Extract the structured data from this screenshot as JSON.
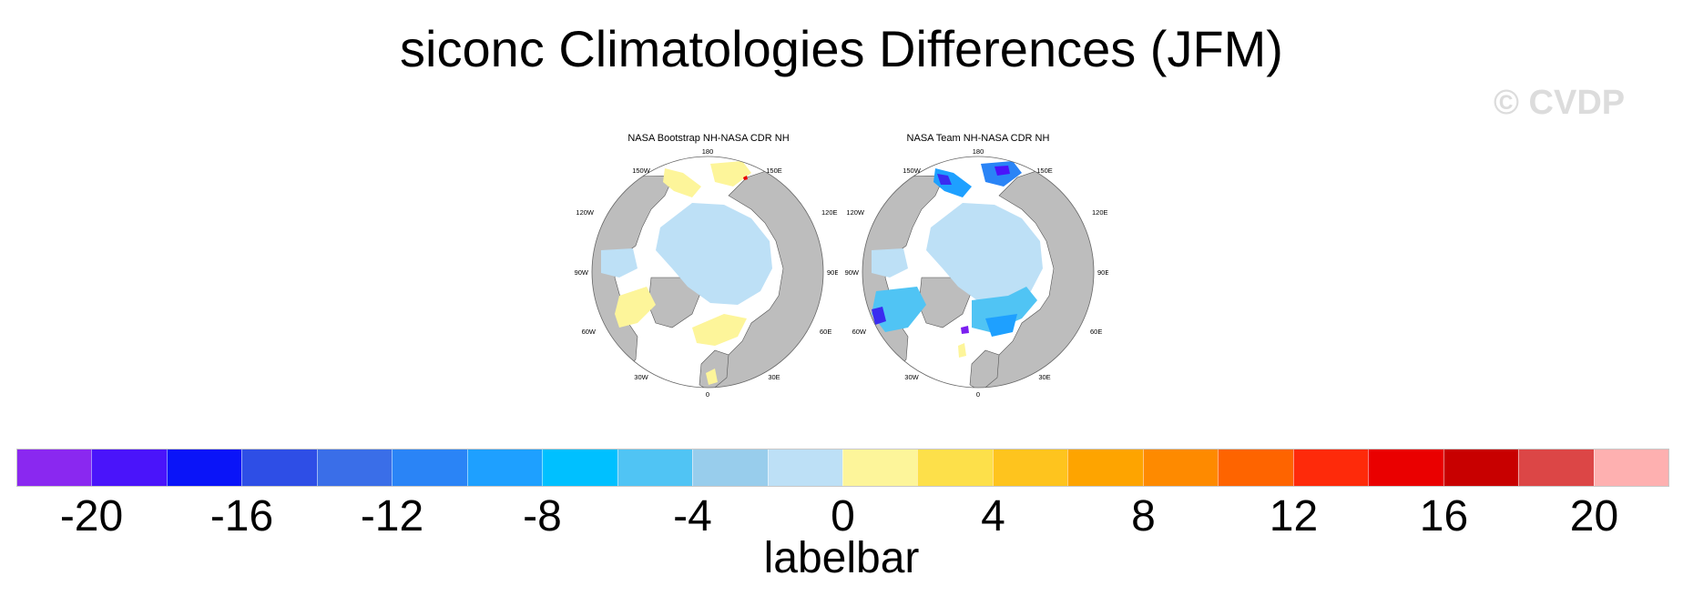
{
  "title": "siconc Climatologies Differences (JFM)",
  "watermark": "© CVDP",
  "panels": [
    {
      "title": "NASA Bootstrap NH-NASA CDR NH"
    },
    {
      "title": "NASA Team NH-NASA CDR NH"
    }
  ],
  "longitude_labels": [
    "180",
    "150E",
    "120E",
    "90E",
    "60E",
    "30E",
    "0",
    "30W",
    "60W",
    "90W",
    "120W",
    "150W"
  ],
  "colors": {
    "land": "#bdbdbd",
    "ocean": "#ffffff",
    "ice_small_neg": "#bde0f6",
    "small_pos": "#fdf59a",
    "mid_blue": "#1ea0ff",
    "deep_blue": "#3a2cf0",
    "violet": "#7b1ff0"
  },
  "labelbar": {
    "title": "labelbar",
    "colors": [
      "#8a28f0",
      "#4a14fa",
      "#0a14f8",
      "#2e4ee6",
      "#3a6ee8",
      "#2a84f6",
      "#1ea0ff",
      "#00c0ff",
      "#50c4f4",
      "#98cdec",
      "#bde0f6",
      "#fdf59a",
      "#fde04a",
      "#fec41e",
      "#fea400",
      "#fe8a00",
      "#fe6400",
      "#fe2a0a",
      "#ea0000",
      "#c80000",
      "#dc4646",
      "#feb0b0"
    ],
    "tick_labels": [
      "-20",
      "-16",
      "-12",
      "-8",
      "-4",
      "0",
      "4",
      "8",
      "12",
      "16",
      "20"
    ]
  }
}
